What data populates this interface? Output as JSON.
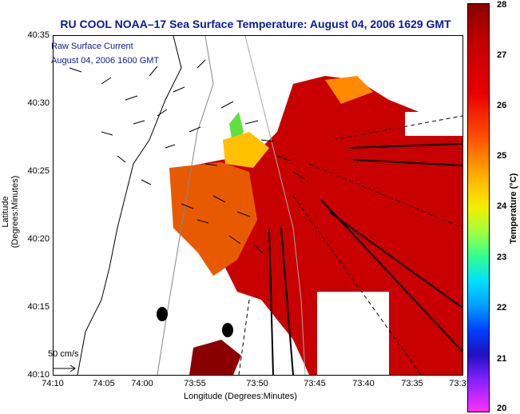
{
  "title": "RU COOL  NOAA–17  Sea Surface Temperature:  August 04, 2006 1629 GMT",
  "overlay": {
    "line1": "Raw Surface Current",
    "line2": "August 04, 2006 1600 GMT"
  },
  "axes": {
    "x_title": "Longitude (Degrees:Minutes)",
    "y_title": "Latitude (Degrees:Minutes)",
    "x_ticks": [
      "74:10",
      "74:05",
      "74:00",
      "73:55",
      "73:50",
      "73:45",
      "73:40",
      "73:35",
      "73:3"
    ],
    "y_ticks": [
      "40:35",
      "40:30",
      "40:25",
      "40:20",
      "40:15",
      "40:10"
    ]
  },
  "colorbar": {
    "title": "Temperature (°C)",
    "ticks": [
      "28",
      "27",
      "26",
      "25",
      "24",
      "23",
      "22",
      "21",
      "20"
    ],
    "min": 20,
    "max": 28
  },
  "scale": {
    "label": "50 cm/s"
  },
  "colors": {
    "title": "#0a1a9a",
    "ocean_warm": "#c80000",
    "ocean_mid": "#e84000",
    "land": "#ffffff"
  }
}
